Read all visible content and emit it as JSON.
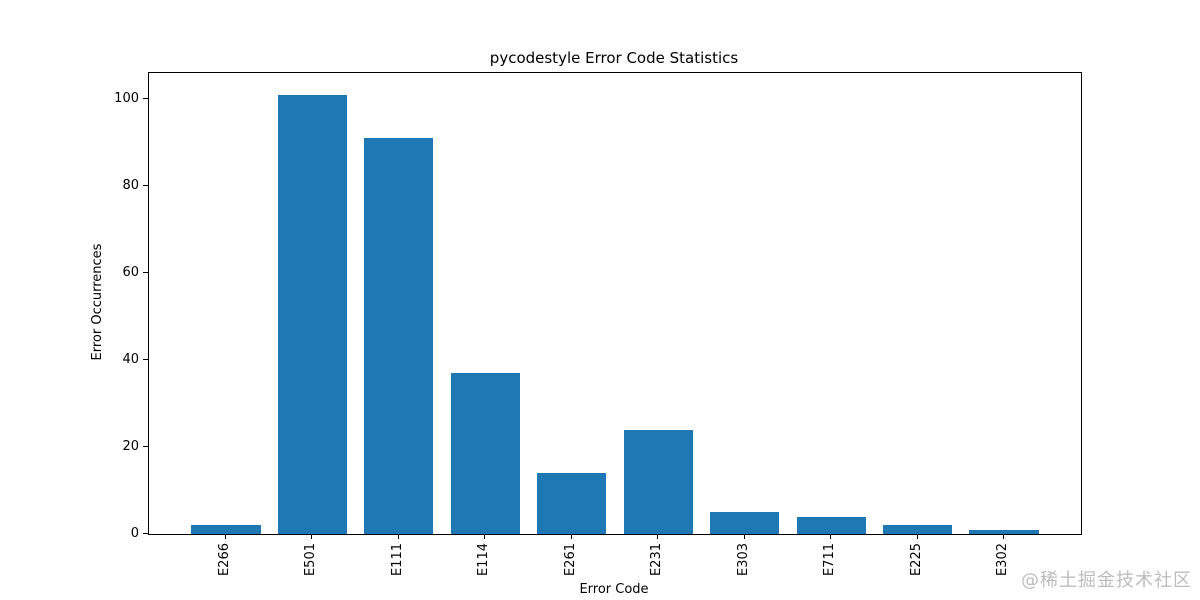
{
  "chart_data": {
    "type": "bar",
    "title": "pycodestyle Error Code Statistics",
    "xlabel": "Error Code",
    "ylabel": "Error Occurrences",
    "categories": [
      "E266",
      "E501",
      "E111",
      "E114",
      "E261",
      "E231",
      "E303",
      "E711",
      "E225",
      "E302"
    ],
    "values": [
      2,
      101,
      91,
      37,
      14,
      24,
      5,
      4,
      2,
      1
    ],
    "yticks": [
      0,
      20,
      40,
      60,
      80,
      100
    ],
    "ylim": [
      0,
      106
    ],
    "bar_color": "#1f77b4",
    "background_color": "#ffffff",
    "grid": false,
    "legend_position": "none",
    "xtick_rotation_deg": 90
  },
  "watermark": {
    "text": "@稀土掘金技术社区",
    "color": "#bcbcbc"
  }
}
